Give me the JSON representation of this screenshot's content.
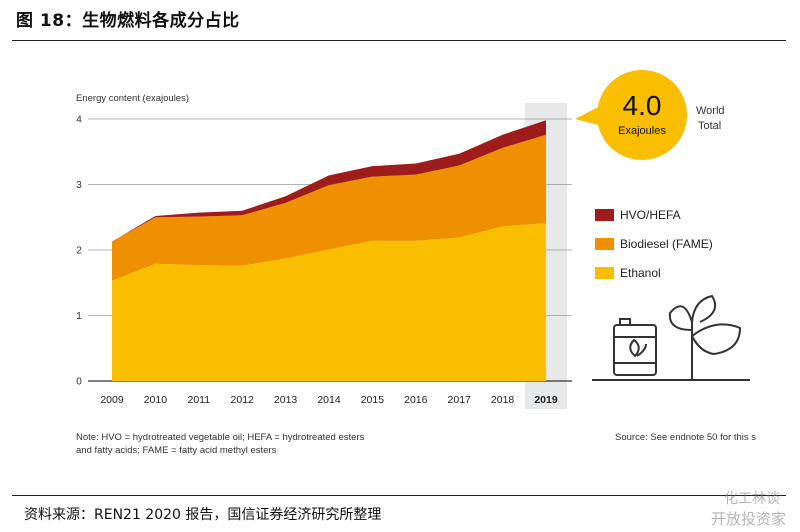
{
  "figure": {
    "title": "图 18：生物燃料各成分占比",
    "source": "资料来源：REN21 2020 报告，国信证券经济研究所整理",
    "watermark_line1": "化工林谈",
    "watermark_line2": "开放投资家"
  },
  "chart_data": {
    "type": "area",
    "stacked": true,
    "ylabel": "Energy content (exajoules)",
    "ylim": [
      0,
      4
    ],
    "yticks": [
      0,
      1,
      2,
      3,
      4
    ],
    "categories": [
      "2009",
      "2010",
      "2011",
      "2012",
      "2013",
      "2014",
      "2015",
      "2016",
      "2017",
      "2018",
      "2019"
    ],
    "highlight_category": "2019",
    "series": [
      {
        "name": "Ethanol",
        "color": "#F9BE00",
        "values": [
          1.53,
          1.79,
          1.77,
          1.76,
          1.87,
          2.01,
          2.14,
          2.14,
          2.19,
          2.36,
          2.41
        ]
      },
      {
        "name": "Biodiesel (FAME)",
        "color": "#EE9000",
        "values": [
          0.6,
          0.71,
          0.74,
          0.77,
          0.85,
          0.98,
          0.98,
          1.01,
          1.1,
          1.2,
          1.35
        ]
      },
      {
        "name": "HVO/HEFA",
        "color": "#9E1C1C",
        "values": [
          0.0,
          0.02,
          0.06,
          0.07,
          0.1,
          0.15,
          0.16,
          0.17,
          0.18,
          0.2,
          0.22
        ]
      }
    ],
    "legend_order": [
      "HVO/HEFA",
      "Biodiesel (FAME)",
      "Ethanol"
    ],
    "callout": {
      "value": "4.0",
      "unit": "Exajoules",
      "label_line1": "World",
      "label_line2": "Total"
    },
    "note_line1": "Note: HVO = hydrotreated vegetable oil; HEFA = hydrotreated esters",
    "note_line2": "and fatty acids; FAME = fatty acid methyl esters",
    "source_note": "Source: See endnote 50 for this s"
  }
}
